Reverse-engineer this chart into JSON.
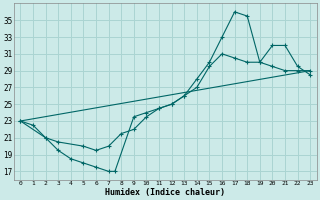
{
  "xlabel": "Humidex (Indice chaleur)",
  "bg_color": "#cceae8",
  "grid_color": "#aad4d2",
  "line_color": "#006666",
  "xlim": [
    -0.5,
    23.5
  ],
  "ylim": [
    16,
    37
  ],
  "yticks": [
    17,
    19,
    21,
    23,
    25,
    27,
    29,
    31,
    33,
    35
  ],
  "xticks": [
    0,
    1,
    2,
    3,
    4,
    5,
    6,
    7,
    8,
    9,
    10,
    11,
    12,
    13,
    14,
    15,
    16,
    17,
    18,
    19,
    20,
    21,
    22,
    23
  ],
  "curve1_x": [
    0,
    1,
    2,
    3,
    4,
    5,
    6,
    7,
    7.5,
    9,
    10,
    11,
    12,
    13,
    14,
    15,
    16,
    17,
    18,
    19,
    20,
    21,
    22,
    23
  ],
  "curve1_y": [
    23,
    22.5,
    21,
    19.5,
    18.5,
    18,
    17.5,
    17,
    17,
    23.5,
    24,
    24.5,
    25,
    26,
    28,
    30,
    33,
    36,
    35.5,
    30,
    32,
    32,
    29.5,
    28.5
  ],
  "curve2_x": [
    0,
    2,
    3,
    5,
    6,
    7,
    8,
    9,
    10,
    11,
    12,
    13,
    14,
    15,
    16,
    17,
    18,
    19,
    20,
    21,
    22,
    23
  ],
  "curve2_y": [
    23,
    21,
    20.5,
    20,
    19.5,
    20,
    21.5,
    22,
    23.5,
    24.5,
    25,
    26,
    27,
    29.5,
    31,
    30.5,
    30,
    30,
    29.5,
    29,
    29,
    29
  ],
  "curve3_x": [
    0,
    23
  ],
  "curve3_y": [
    23,
    29
  ]
}
